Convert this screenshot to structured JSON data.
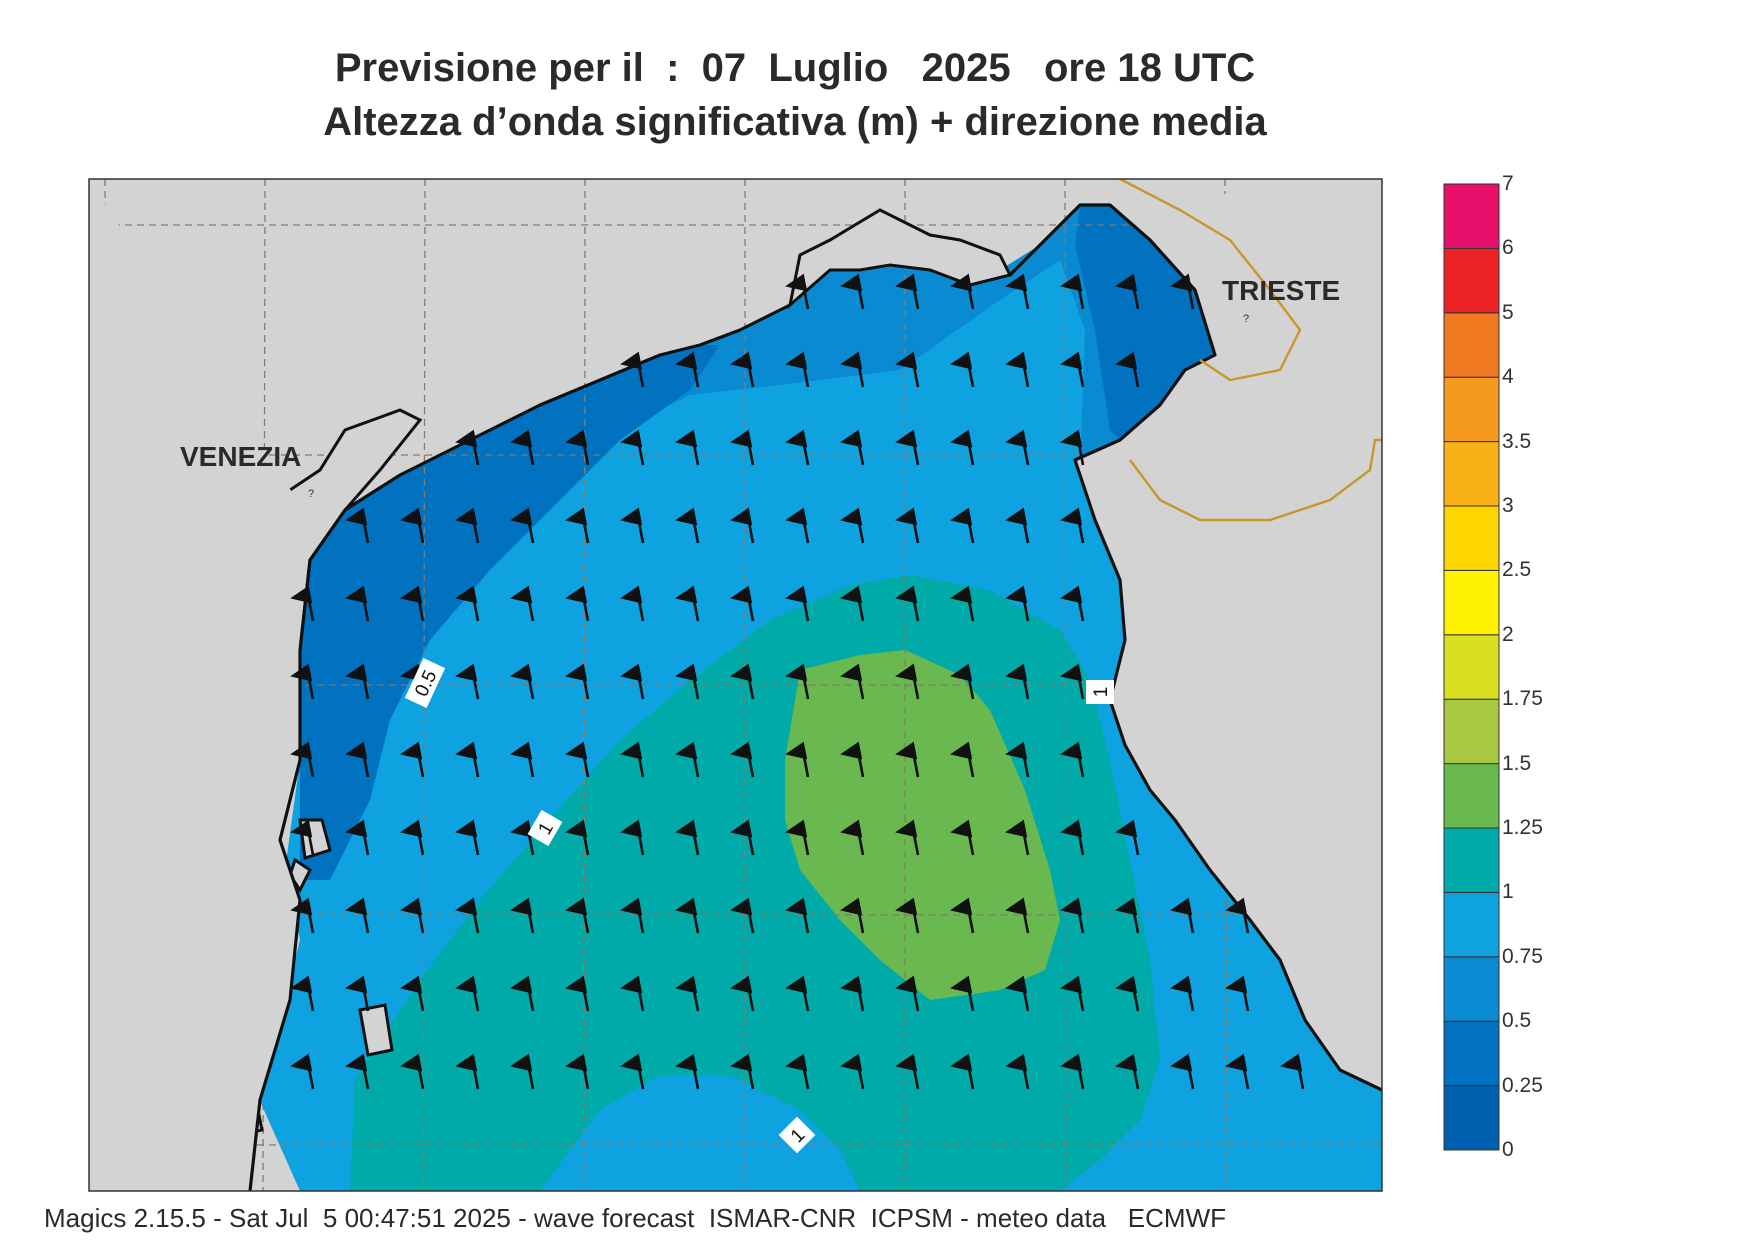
{
  "title": {
    "line1": "Previsione per il  :  07  Luglio   2025   ore 18 UTC",
    "line2": "Altezza d’onda significativa (m) + direzione media"
  },
  "places": {
    "venezia": "VENEZIA",
    "trieste": "TRIESTE"
  },
  "contour_labels": [
    "0.5",
    "1",
    "1",
    "1"
  ],
  "legend": {
    "unit": "m",
    "levels": [
      "0",
      "0.25",
      "0.5",
      "0.75",
      "1",
      "1.25",
      "1.5",
      "1.75",
      "2",
      "2.5",
      "3",
      "3.5",
      "4",
      "5",
      "6",
      "7"
    ],
    "colors": [
      "#0060b0",
      "#0072c0",
      "#0a8ad0",
      "#0fa2e0",
      "#00aaa8",
      "#6ab850",
      "#a8c840",
      "#d8e020",
      "#fff200",
      "#ffd500",
      "#f8b218",
      "#f59a1e",
      "#f07820",
      "#ec2225",
      "#e8106a"
    ]
  },
  "colors": {
    "land": "#d3d3d3",
    "coast": "#111111",
    "border": "#c8962a",
    "grid": "#8a7a66"
  },
  "wave_direction": "north-northwest",
  "footer": "Magics 2.15.5 - Sat Jul  5 00:47:51 2025 - wave forecast  ISMAR-CNR  ICPSM - meteo data   ECMWF"
}
